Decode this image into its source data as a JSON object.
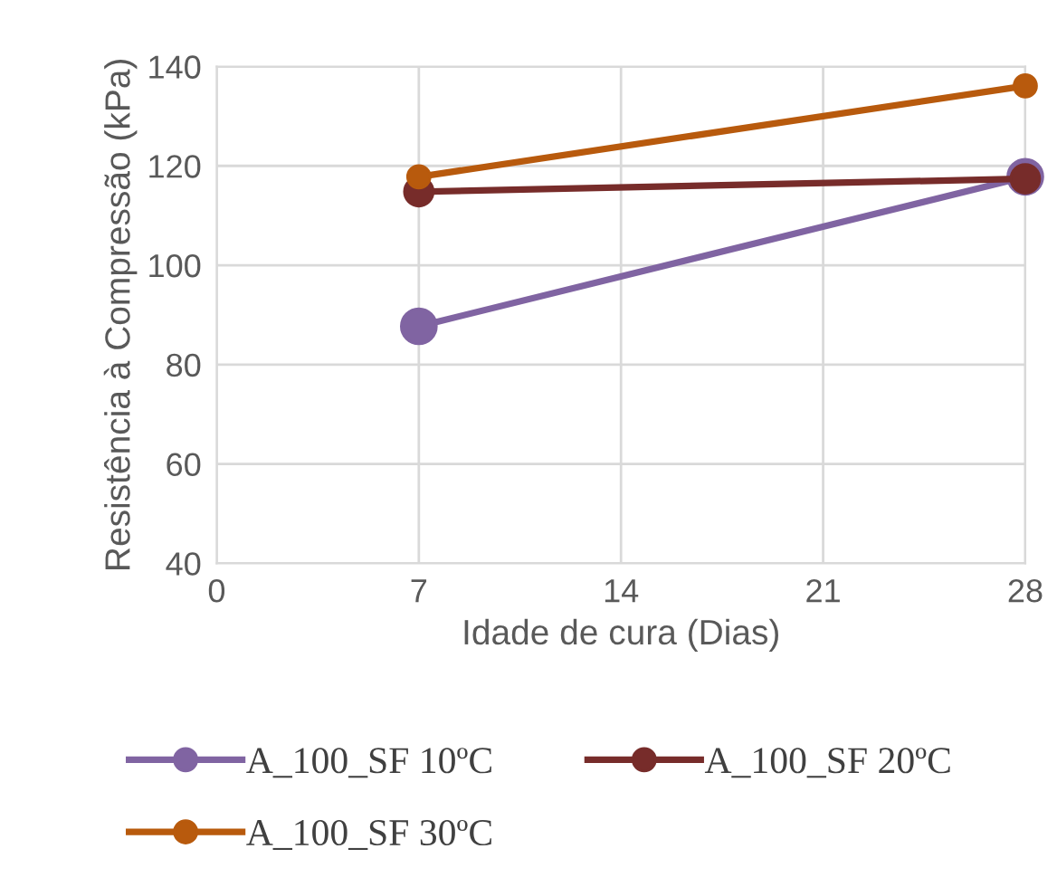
{
  "chart_data": {
    "type": "line",
    "xlabel": "Idade de cura (Dias)",
    "ylabel": "Resistência à Compressão (kPa)",
    "x": [
      7,
      28
    ],
    "series": [
      {
        "name": "A_100_SF 10ºC",
        "color": "#8064a2",
        "values": [
          87.7,
          117.8
        ]
      },
      {
        "name": "A_100_SF 20ºC",
        "color": "#772c2a",
        "values": [
          114.8,
          117.4
        ]
      },
      {
        "name": "A_100_SF 30ºC",
        "color": "#b85a0d",
        "values": [
          117.8,
          136.1
        ]
      }
    ],
    "xlim": [
      0,
      28
    ],
    "xticks": [
      0,
      7,
      14,
      21,
      28
    ],
    "ylim": [
      40,
      140
    ],
    "yticks": [
      40,
      60,
      80,
      100,
      120,
      140
    ],
    "grid": true,
    "legend": "bottom",
    "marker": "circle",
    "line_style": "solid"
  }
}
